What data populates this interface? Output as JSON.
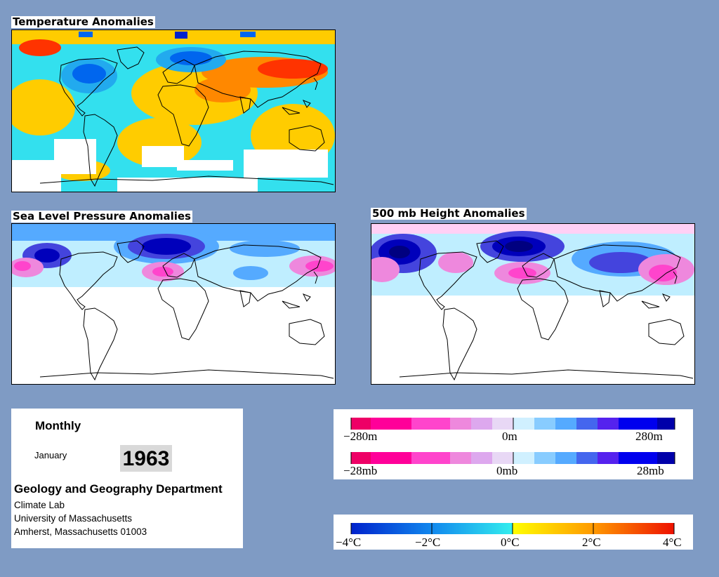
{
  "panels": {
    "temperature": {
      "title": "Temperature Anomalies"
    },
    "slp": {
      "title": "Sea Level Pressure Anomalies"
    },
    "height": {
      "title": "500 mb Height Anomalies"
    }
  },
  "info": {
    "period": "Monthly",
    "month": "January",
    "year": "1963",
    "department": "Geology and Geography Department",
    "lab": "Climate Lab",
    "university": "University of Massachusetts",
    "address": "Amherst, Massachusetts 01003"
  },
  "legends": {
    "height": {
      "min": "−280m",
      "mid": "0m",
      "max": "280m"
    },
    "pressure": {
      "min": "−28mb",
      "mid": "0mb",
      "max": "28mb"
    },
    "temperature": {
      "ticks": [
        "−4°C",
        "−2°C",
        "0°C",
        "2°C",
        "4°C"
      ]
    }
  },
  "colors": {
    "background": "#7f9bc4",
    "anomaly_scale_pos": [
      "#ffffff",
      "#bfeeff",
      "#55aaff",
      "#4444dd",
      "#0000bb",
      "#000080"
    ],
    "anomaly_scale_neg": [
      "#ffffff",
      "#ffd0f5",
      "#ee88dd",
      "#ff44cc",
      "#ff0099",
      "#ee0066"
    ],
    "temperature_scale": [
      "#0022cc",
      "#0066ee",
      "#22aaee",
      "#33e0ee",
      "#ffff00",
      "#ffcc00",
      "#ff8800",
      "#ff3300",
      "#dd0000"
    ]
  }
}
